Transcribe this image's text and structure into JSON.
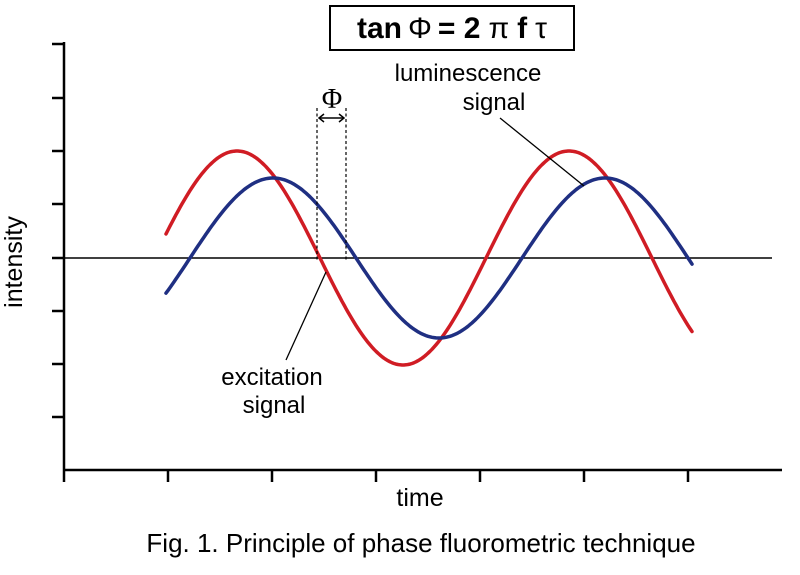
{
  "formula": {
    "tan": "tan",
    "phi": "Φ",
    "equals_two": "= 2",
    "pi": "π",
    "f": "f",
    "tau": "τ"
  },
  "phase_label": "Φ",
  "luminescence_label": {
    "line1": "luminescence",
    "line2": "signal"
  },
  "excitation_label": {
    "line1": "excitation",
    "line2": "signal"
  },
  "axis_labels": {
    "y": "intensity",
    "x": "time"
  },
  "caption": "Fig. 1. Principle of phase fluorometric technique",
  "colors": {
    "excitation": "#d01c24",
    "luminescence": "#1f2f82",
    "axis": "#000000"
  }
}
